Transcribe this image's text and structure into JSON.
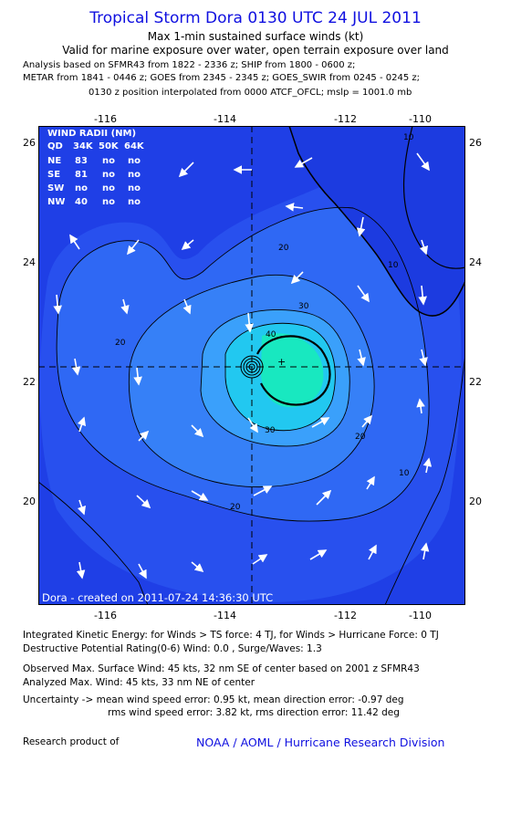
{
  "header": {
    "title": "Tropical Storm Dora 0130 UTC 24 JUL 2011",
    "subtitle1": "Max 1-min sustained surface winds (kt)",
    "subtitle2": "Valid for marine exposure over water, open terrain exposure over land",
    "analysis_lines": [
      "Analysis based on SFMR43 from 1822 - 2336 z; SHIP from 1800 - 0600 z;",
      "METAR from 1841 - 0446 z; GOES from 2345 - 2345 z; GOES_SWIR from 0245 - 0245 z;",
      "0130 z position interpolated from 0000 ATCF_OFCL; mslp = 1001.0 mb"
    ]
  },
  "map": {
    "lon_ticks": [
      "-116",
      "-114",
      "-112",
      "-110"
    ],
    "lat_ticks": [
      "26",
      "24",
      "22",
      "20"
    ],
    "lon_range": [
      -117.0,
      -109.9
    ],
    "lat_range": [
      18.3,
      26.2
    ],
    "storm_center": {
      "lon": -113.2,
      "lat": 22.25
    },
    "contour_labels": [
      "10",
      "20",
      "30",
      "40"
    ],
    "credit": "Dora - created on 2011-07-24 14:36:30 UTC",
    "colors": {
      "ocean_outer": "#1f3fe6",
      "ocean_mid": "#2f68f4",
      "ocean_inner": "#3aa0fb",
      "core": "#18e8c0",
      "land": "#1e40e0"
    }
  },
  "wind_radii": {
    "title": "WIND RADII (NM)",
    "headers": [
      "QD",
      "34K",
      "50K",
      "64K"
    ],
    "rows": [
      [
        "NE",
        "83",
        "no",
        "no"
      ],
      [
        "SE",
        "81",
        "no",
        "no"
      ],
      [
        "SW",
        "no",
        "no",
        "no"
      ],
      [
        "NW",
        "40",
        "no",
        "no"
      ]
    ]
  },
  "footer": {
    "ike": "Integrated Kinetic Energy:  for Winds > TS force: 4 TJ,  for Winds > Hurricane Force: 0 TJ",
    "dpr": "Destructive Potential Rating(0-6)   Wind: 0.0 , Surge/Waves: 1.3",
    "obs_max": "Observed Max. Surface Wind: 45 kts, 32 nm SE of center based on 2001 z SFMR43",
    "ana_max": "Analyzed Max. Wind: 45 kts, 33 nm NE of center",
    "unc1": "Uncertainty -> mean wind speed error: 0.95 kt,   mean direction error:  -0.97 deg",
    "unc2": "rms wind speed error: 3.82 kt,   rms direction error: 11.42 deg",
    "research": "Research product of",
    "org": "NOAA / AOML / Hurricane Research Division"
  }
}
